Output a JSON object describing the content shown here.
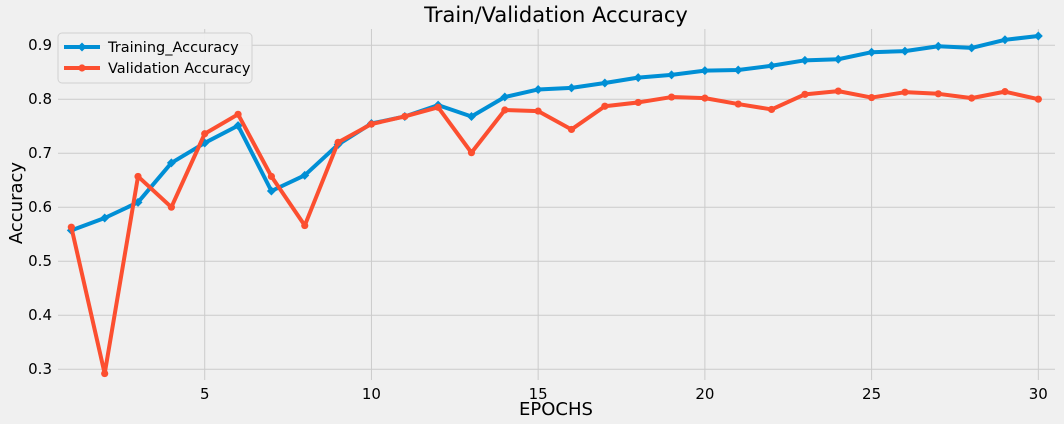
{
  "chart_data": {
    "type": "line",
    "title": "Train/Validation Accuracy",
    "xlabel": "EPOCHS",
    "ylabel": "Accuracy",
    "x": [
      1,
      2,
      3,
      4,
      5,
      6,
      7,
      8,
      9,
      10,
      11,
      12,
      13,
      14,
      15,
      16,
      17,
      18,
      19,
      20,
      21,
      22,
      23,
      24,
      25,
      26,
      27,
      28,
      29,
      30
    ],
    "xlim": [
      0.6,
      30.5
    ],
    "ylim": [
      0.28,
      0.93
    ],
    "xticks": [
      5,
      10,
      15,
      20,
      25,
      30
    ],
    "yticks": [
      0.3,
      0.4,
      0.5,
      0.6,
      0.7,
      0.8,
      0.9
    ],
    "grid": true,
    "legend_position": "top-left",
    "series": [
      {
        "name": "Training_Accuracy",
        "color": "#008fd5",
        "marker": "diamond",
        "values": [
          0.557,
          0.58,
          0.609,
          0.682,
          0.719,
          0.751,
          0.63,
          0.659,
          0.716,
          0.755,
          0.768,
          0.789,
          0.768,
          0.804,
          0.818,
          0.821,
          0.83,
          0.84,
          0.845,
          0.853,
          0.854,
          0.862,
          0.872,
          0.874,
          0.887,
          0.889,
          0.898,
          0.895,
          0.91,
          0.917
        ]
      },
      {
        "name": "Validation Accuracy",
        "color": "#fc4f30",
        "marker": "circle",
        "values": [
          0.563,
          0.292,
          0.657,
          0.6,
          0.736,
          0.772,
          0.657,
          0.566,
          0.72,
          0.754,
          0.768,
          0.785,
          0.701,
          0.78,
          0.778,
          0.744,
          0.787,
          0.794,
          0.804,
          0.802,
          0.791,
          0.781,
          0.809,
          0.815,
          0.803,
          0.813,
          0.81,
          0.802,
          0.814,
          0.8
        ]
      }
    ]
  }
}
